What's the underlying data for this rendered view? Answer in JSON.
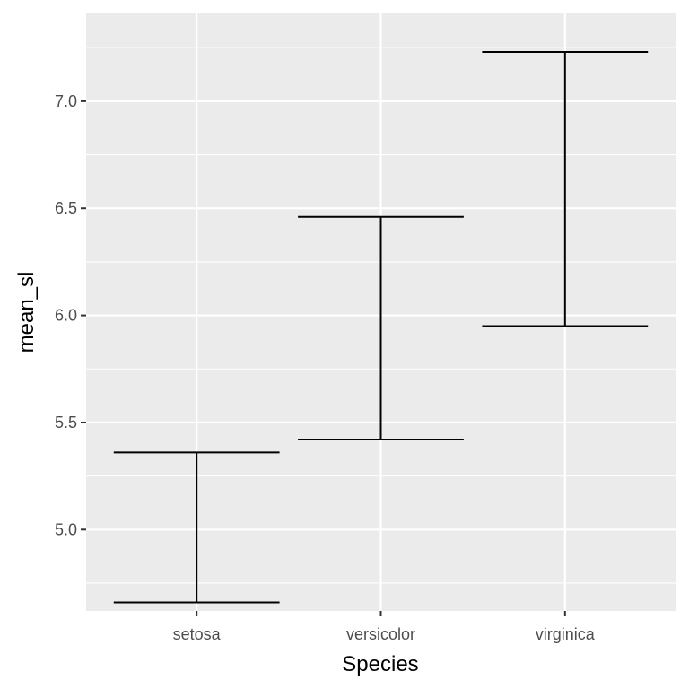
{
  "chart_data": {
    "type": "errorbar",
    "categories": [
      "setosa",
      "versicolor",
      "virginica"
    ],
    "series": [
      {
        "lower": [
          4.66,
          5.42,
          5.95
        ],
        "upper": [
          5.36,
          6.46,
          7.23
        ]
      }
    ],
    "xlabel": "Species",
    "ylabel": "mean_sl",
    "ylim": [
      4.62,
      7.41
    ],
    "y_ticks": [
      5.0,
      5.5,
      6.0,
      6.5,
      7.0
    ],
    "y_tick_labels": [
      "5.0",
      "5.5",
      "6.0",
      "6.5",
      "7.0"
    ],
    "grid": true,
    "legend": "none"
  },
  "colors": {
    "panel_background": "#ebebeb",
    "grid": "#ffffff",
    "bar": "#000000",
    "tick_label": "#4d4d4d",
    "axis_tick": "#333333"
  }
}
